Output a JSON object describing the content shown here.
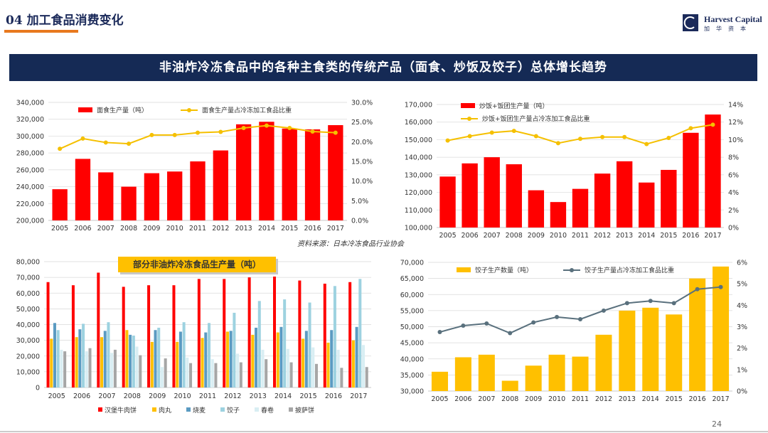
{
  "header": {
    "title": "04 加工食品消费变化"
  },
  "logo": {
    "name": "Harvest Capital",
    "cn": "加华资本"
  },
  "banner": {
    "text": "非油炸冷冻食品中的各种主食类的传统产品（面食、炒饭及饺子）总体增长趋势"
  },
  "source": "资料来源：日本冷冻食品行业协会",
  "page_number": "24",
  "colors": {
    "red": "#ff0000",
    "gold": "#ffc000",
    "line_gold": "#f5c000",
    "line_gray": "#59707d",
    "navy": "#152a55"
  },
  "chart_data": [
    {
      "id": "noodles",
      "type": "bar+line",
      "title": "",
      "categories": [
        "2005",
        "2006",
        "2007",
        "2008",
        "2009",
        "2010",
        "2011",
        "2012",
        "2013",
        "2014",
        "2015",
        "2016",
        "2017"
      ],
      "bar_series": {
        "name": "面食生产量（吨）",
        "values": [
          237000,
          273000,
          257000,
          240000,
          256000,
          258000,
          270000,
          283000,
          314000,
          317000,
          309000,
          308000,
          313000
        ]
      },
      "line_series": {
        "name": "面食生产量占冷冻加工食品比重",
        "values": [
          18.2,
          20.8,
          19.8,
          19.5,
          21.7,
          21.7,
          22.3,
          22.5,
          23.5,
          24.1,
          23.5,
          22.6,
          22.3
        ]
      },
      "y_left": {
        "min": 200000,
        "max": 340000,
        "step": 20000,
        "ticks": [
          "200,000",
          "220,000",
          "240,000",
          "260,000",
          "280,000",
          "300,000",
          "320,000",
          "340,000"
        ]
      },
      "y_right": {
        "min": 0,
        "max": 30,
        "step": 5,
        "ticks": [
          "0.0%",
          "5.0%",
          "10.0%",
          "15.0%",
          "20.0%",
          "25.0%",
          "30.0%"
        ]
      },
      "legend_position": "top"
    },
    {
      "id": "rice",
      "type": "bar+line",
      "title": "",
      "categories": [
        "2005",
        "2006",
        "2007",
        "2008",
        "2009",
        "2010",
        "2011",
        "2012",
        "2013",
        "2014",
        "2015",
        "2016",
        "2017"
      ],
      "bar_series": {
        "name": "炒饭+饭团生产量（吨）",
        "values": [
          129000,
          136500,
          140000,
          136000,
          121200,
          114500,
          122000,
          130700,
          137700,
          125600,
          132800,
          153900,
          164300
        ]
      },
      "line_series": {
        "name": "炒饭+饭团生产量占冷冻加工食品比重",
        "values": [
          9.9,
          10.4,
          10.8,
          11.0,
          10.4,
          9.6,
          10.1,
          10.3,
          10.3,
          9.5,
          10.2,
          11.3,
          11.7
        ]
      },
      "y_left": {
        "min": 100000,
        "max": 170000,
        "step": 10000,
        "ticks": [
          "100,000",
          "110,000",
          "120,000",
          "130,000",
          "140,000",
          "150,000",
          "160,000",
          "170,000"
        ]
      },
      "y_right": {
        "min": 0,
        "max": 14,
        "step": 2,
        "ticks": [
          "0%",
          "2%",
          "4%",
          "6%",
          "8%",
          "10%",
          "12%",
          "14%"
        ]
      },
      "legend_position": "top"
    },
    {
      "id": "multi",
      "type": "bar",
      "title": "部分非油炸冷冻食品生产量（吨）",
      "categories": [
        "2005",
        "2006",
        "2007",
        "2008",
        "2009",
        "2010",
        "2011",
        "2012",
        "2013",
        "2014",
        "2015",
        "2016",
        "2017"
      ],
      "series": [
        {
          "name": "汉堡牛肉饼",
          "color": "#ff0000",
          "values": [
            67000,
            65000,
            73000,
            64000,
            65000,
            65000,
            69000,
            69000,
            70000,
            70500,
            68000,
            66000,
            67000
          ]
        },
        {
          "name": "肉丸",
          "color": "#ffc000",
          "values": [
            31000,
            32000,
            32000,
            36500,
            29000,
            29000,
            31500,
            35500,
            33500,
            35000,
            31000,
            28500,
            30000
          ]
        },
        {
          "name": "烧麦",
          "color": "#5b9bc2",
          "values": [
            41000,
            37000,
            36000,
            33500,
            36500,
            35500,
            35000,
            36000,
            38000,
            38500,
            36000,
            36500,
            38500
          ]
        },
        {
          "name": "饺子",
          "color": "#9dd2e0",
          "values": [
            36500,
            40500,
            41500,
            33000,
            38000,
            41500,
            41000,
            47500,
            55000,
            56000,
            54000,
            64500,
            69000
          ]
        },
        {
          "name": "春卷",
          "color": "#d9eef3",
          "values": [
            24000,
            23000,
            22000,
            26000,
            13000,
            19000,
            18000,
            21500,
            24000,
            24500,
            25500,
            24000,
            27000
          ]
        },
        {
          "name": "披萨饼",
          "color": "#a6a6a6",
          "values": [
            23000,
            25000,
            24000,
            20500,
            18500,
            15500,
            15500,
            16000,
            18000,
            16000,
            15000,
            12500,
            13000
          ]
        }
      ],
      "y_axis": {
        "min": 0,
        "max": 80000,
        "step": 10000,
        "ticks": [
          "0",
          "10,000",
          "20,000",
          "30,000",
          "40,000",
          "50,000",
          "60,000",
          "70,000",
          "80,000"
        ]
      },
      "legend_position": "bottom"
    },
    {
      "id": "dumplings",
      "type": "bar+line",
      "title": "",
      "categories": [
        "2005",
        "2006",
        "2007",
        "2008",
        "2009",
        "2010",
        "2011",
        "2012",
        "2013",
        "2014",
        "2015",
        "2016",
        "2017"
      ],
      "bar_series": {
        "name": "饺子生产数量（吨）",
        "values": [
          36000,
          40500,
          41300,
          33200,
          37900,
          41300,
          40700,
          47500,
          55000,
          55900,
          53800,
          65000,
          68700
        ]
      },
      "line_series": {
        "name": "饺子生产量占冷冻加工食品比重",
        "values": [
          2.75,
          3.05,
          3.15,
          2.7,
          3.2,
          3.45,
          3.35,
          3.75,
          4.1,
          4.2,
          4.1,
          4.75,
          4.85
        ]
      },
      "y_left": {
        "min": 30000,
        "max": 70000,
        "step": 5000,
        "ticks": [
          "30,000",
          "35,000",
          "40,000",
          "45,000",
          "50,000",
          "55,000",
          "60,000",
          "65,000",
          "70,000"
        ]
      },
      "y_right": {
        "min": 0,
        "max": 6,
        "step": 1,
        "ticks": [
          "0%",
          "1%",
          "2%",
          "3%",
          "4%",
          "5%",
          "6%"
        ]
      },
      "legend_position": "top"
    }
  ]
}
